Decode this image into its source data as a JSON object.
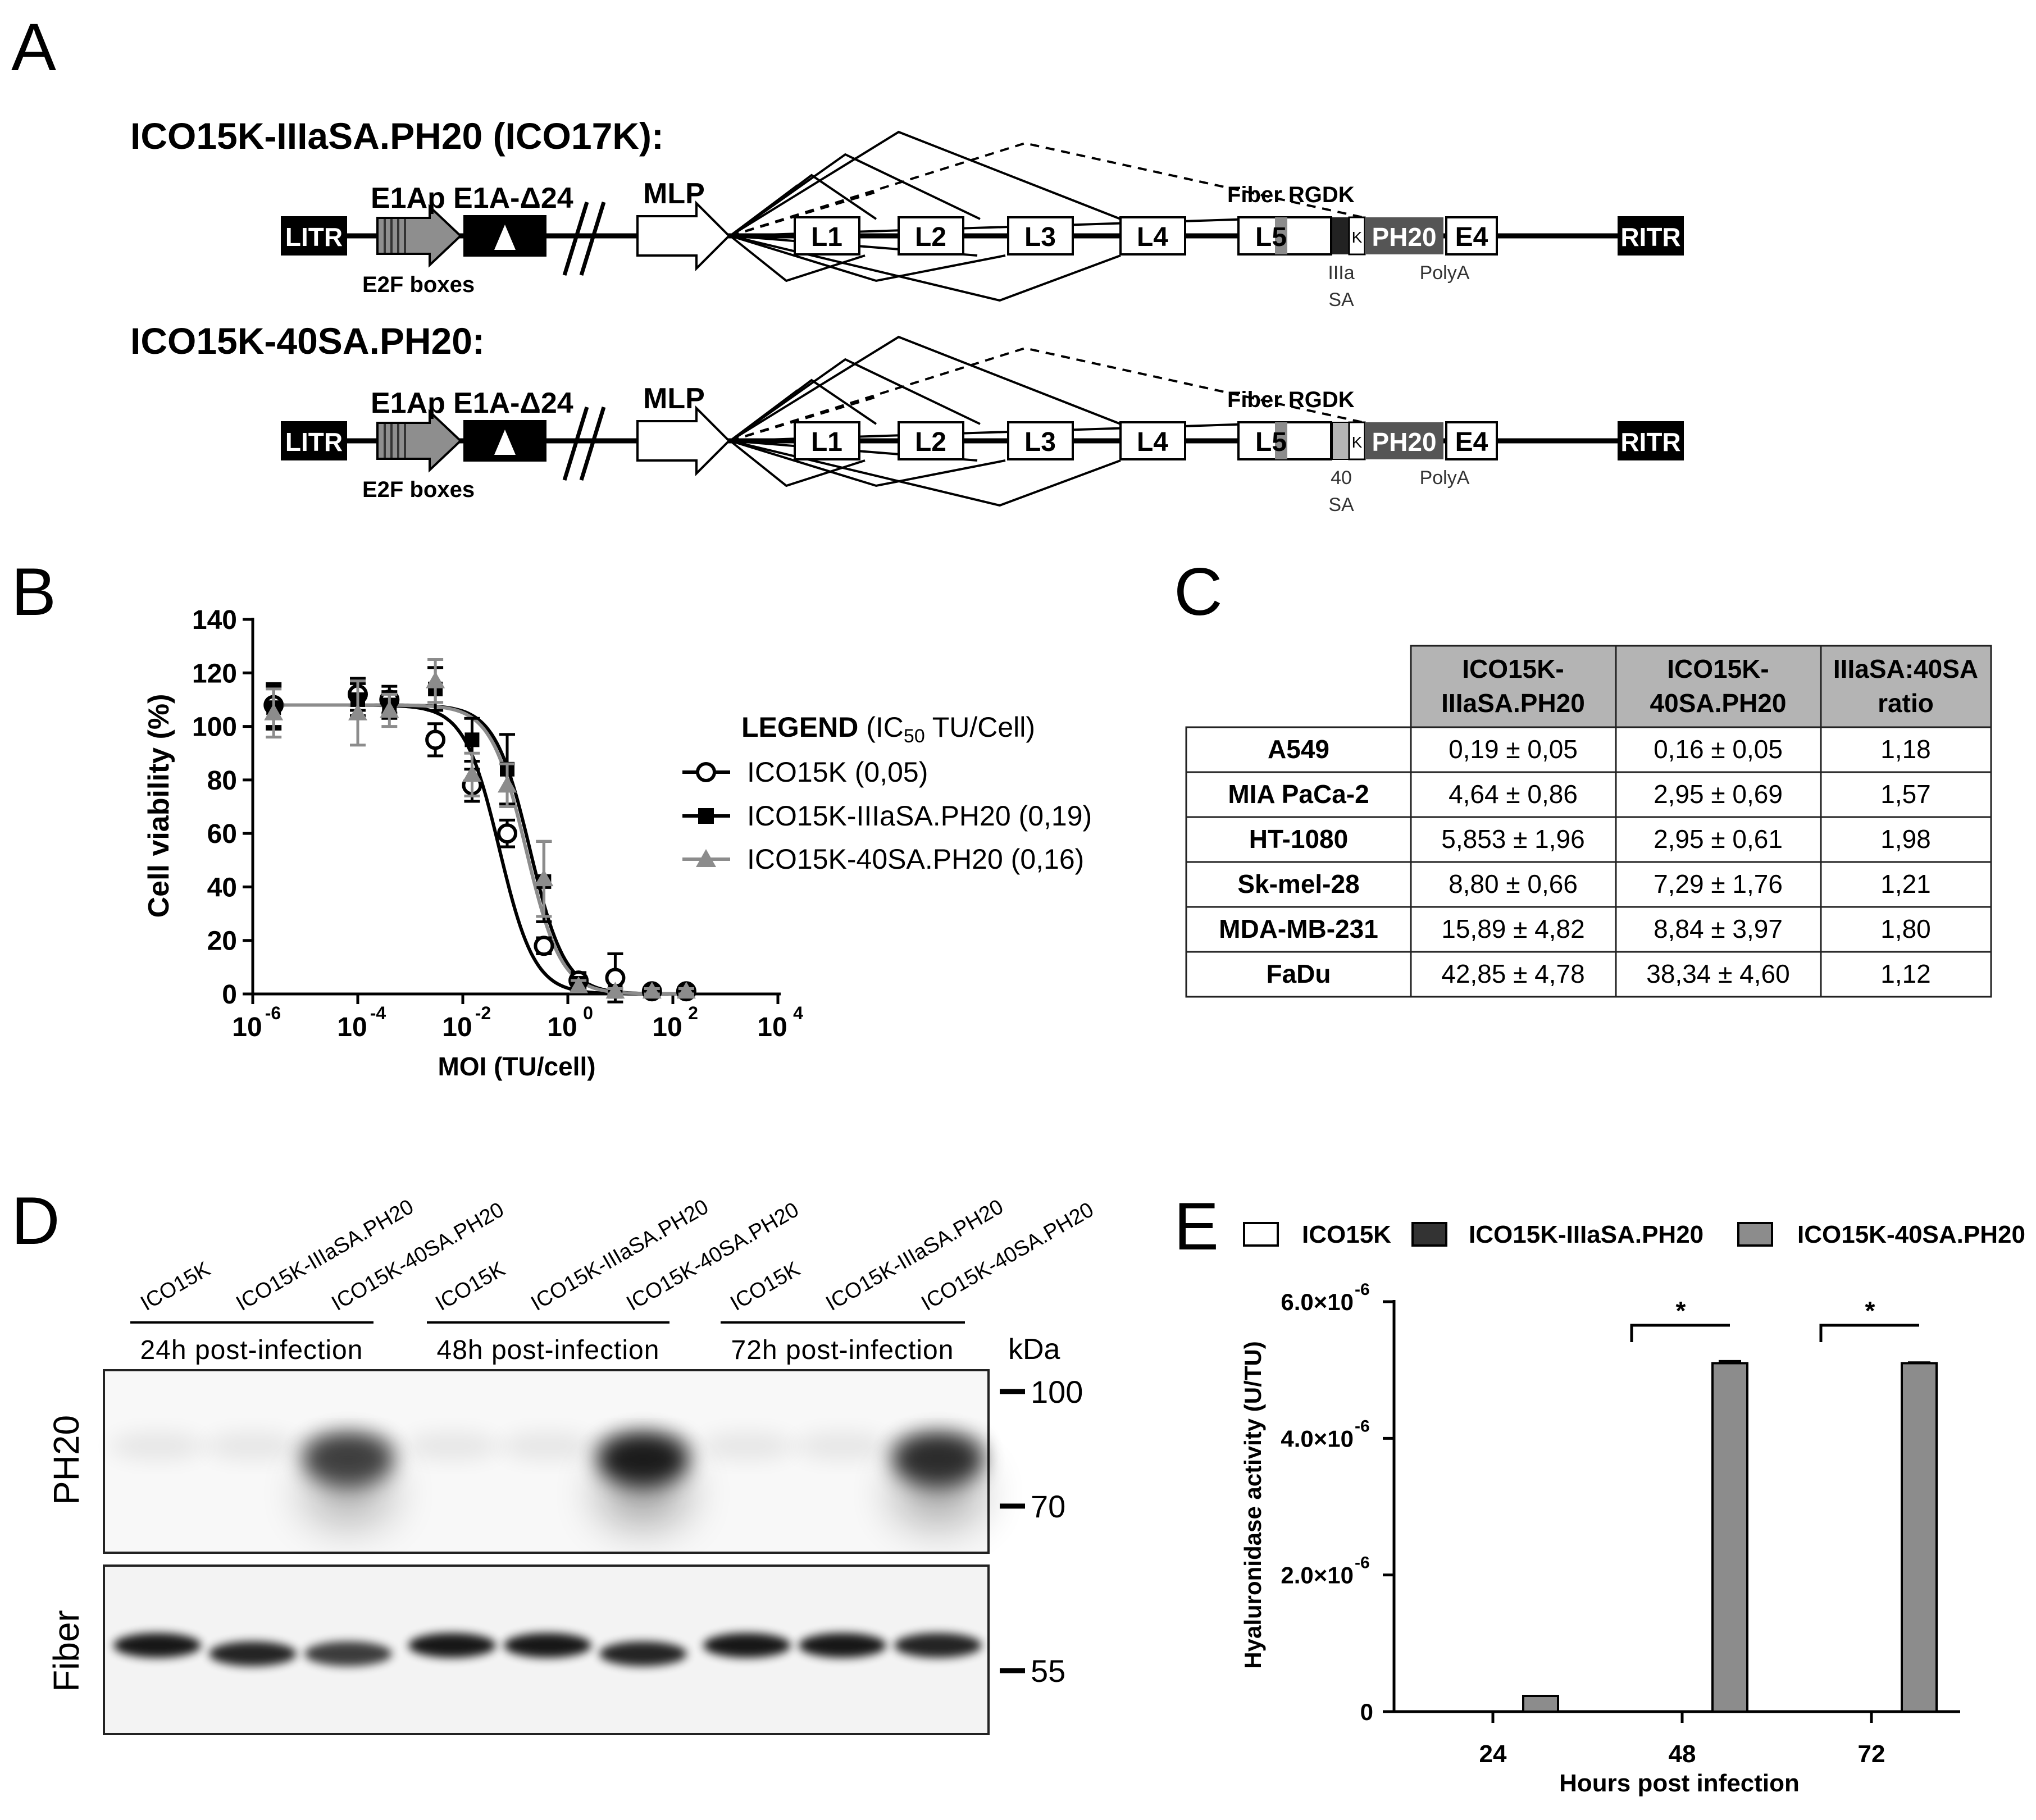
{
  "panels": {
    "A": "A",
    "B": "B",
    "C": "C",
    "D": "D",
    "E": "E"
  },
  "construct1": {
    "title": "ICO15K-IIIaSA.PH20 (ICO17K):",
    "litr": "LITR",
    "ritr": "RITR",
    "e1ap": "E1Ap",
    "e1a": "E1A-Δ24",
    "e2f": "E2F boxes",
    "mlp": "MLP",
    "genes": [
      "L1",
      "L2",
      "L3",
      "L4",
      "L5"
    ],
    "fiber": "Fiber RGDK",
    "k": "K",
    "ph20": "PH20",
    "e4": "E4",
    "sa_top": "IIIa",
    "sa_bottom": "SA",
    "polya": "PolyA"
  },
  "construct2": {
    "title": "ICO15K-40SA.PH20:",
    "litr": "LITR",
    "ritr": "RITR",
    "e1ap": "E1Ap",
    "e1a": "E1A-Δ24",
    "e2f": "E2F boxes",
    "mlp": "MLP",
    "genes": [
      "L1",
      "L2",
      "L3",
      "L4",
      "L5"
    ],
    "fiber": "Fiber RGDK",
    "k": "K",
    "ph20": "PH20",
    "e4": "E4",
    "sa_top": "40",
    "sa_bottom": "SA",
    "polya": "PolyA"
  },
  "panelB": {
    "chart_data": {
      "type": "scatter",
      "xlabel": "MOI (TU/cell)",
      "ylabel": "Cell viability (%)",
      "x_scale": "log",
      "xlim": [
        1e-06,
        10000.0
      ],
      "ylim": [
        0,
        140
      ],
      "x_tick_labels": [
        "10",
        "10",
        "10",
        "10",
        "10",
        "10"
      ],
      "x_tick_exponents": [
        "-6",
        "-4",
        "-2",
        "0",
        "2",
        "4"
      ],
      "x_tick_values": [
        1e-06,
        0.0001,
        0.01,
        1,
        100,
        10000
      ],
      "y_ticks": [
        0,
        20,
        40,
        60,
        80,
        100,
        120,
        140
      ],
      "legend_bold": "LEGEND",
      "legend_rest": " (IC",
      "legend_sub": "50",
      "legend_end": " TU/Cell)",
      "series": [
        {
          "name": "ICO15K (0,05)",
          "color": "#000000",
          "marker": "circle-open",
          "x": [
            2.5e-06,
            0.0001,
            0.0004,
            0.003,
            0.015,
            0.07,
            0.35,
            1.6,
            8,
            40,
            180
          ],
          "y": [
            108,
            112,
            110,
            95,
            78,
            60,
            18,
            5,
            6,
            1,
            1
          ],
          "err": [
            8,
            6,
            5,
            6,
            6,
            5,
            3,
            3,
            9,
            1,
            1
          ],
          "ic50": 0.05
        },
        {
          "name": "ICO15K-IIIaSA.PH20 (0,19)",
          "color": "#000000",
          "marker": "square-filled",
          "x": [
            2.5e-06,
            0.0001,
            0.0004,
            0.003,
            0.015,
            0.07,
            0.35,
            1.6,
            8,
            40,
            180
          ],
          "y": [
            107,
            110,
            108,
            114,
            95,
            84,
            42,
            4,
            1,
            1,
            1
          ],
          "err": [
            8,
            6,
            5,
            8,
            8,
            13,
            15,
            2,
            1,
            1,
            1
          ],
          "ic50": 0.19
        },
        {
          "name": "ICO15K-40SA.PH20 (0,16)",
          "color": "#8c8c8c",
          "marker": "triangle-filled",
          "x": [
            2.5e-06,
            0.0001,
            0.0004,
            0.003,
            0.015,
            0.07,
            0.35,
            1.6,
            8,
            40,
            180
          ],
          "y": [
            105,
            105,
            106,
            117,
            82,
            78,
            43,
            3,
            1,
            1,
            1
          ],
          "err": [
            9,
            12,
            6,
            8,
            8,
            8,
            14,
            2,
            1,
            1,
            1
          ],
          "ic50": 0.16
        }
      ]
    }
  },
  "panelC": {
    "chart_data": {
      "type": "table",
      "headers": [
        [
          "ICO15K-",
          "IIIaSA.PH20"
        ],
        [
          "ICO15K-",
          "40SA.PH20"
        ],
        [
          "IIIaSA:40SA",
          "ratio"
        ]
      ],
      "rows": [
        {
          "cell": "A549",
          "iiia": "0,19 ± 0,05",
          "sa40": "0,16 ± 0,05",
          "ratio": "1,18"
        },
        {
          "cell": "MIA PaCa-2",
          "iiia": "4,64 ± 0,86",
          "sa40": "2,95 ± 0,69",
          "ratio": "1,57"
        },
        {
          "cell": "HT-1080",
          "iiia": "5,853 ± 1,96",
          "sa40": "2,95 ± 0,61",
          "ratio": "1,98"
        },
        {
          "cell": "Sk-mel-28",
          "iiia": "8,80 ± 0,66",
          "sa40": "7,29 ± 1,76",
          "ratio": "1,21"
        },
        {
          "cell": "MDA-MB-231",
          "iiia": "15,89 ± 4,82",
          "sa40": "8,84 ± 3,97",
          "ratio": "1,80"
        },
        {
          "cell": "FaDu",
          "iiia": "42,85 ± 4,78",
          "sa40": "38,34 ± 4,60",
          "ratio": "1,12"
        }
      ]
    }
  },
  "panelD": {
    "lanes": [
      "ICO15K",
      "ICO15K-IIIaSA.PH20",
      "ICO15K-40SA.PH20",
      "ICO15K",
      "ICO15K-IIIaSA.PH20",
      "ICO15K-40SA.PH20",
      "ICO15K",
      "ICO15K-IIIaSA.PH20",
      "ICO15K-40SA.PH20"
    ],
    "groups": [
      "24h post-infection",
      "48h post-infection",
      "72h post-infection"
    ],
    "kda": "kDa",
    "markers": [
      "100",
      "70",
      "55"
    ],
    "blot_labels": [
      "PH20",
      "Fiber"
    ],
    "ph20_band_intensity": [
      0.05,
      0.05,
      0.8,
      0.05,
      0.05,
      1.0,
      0.05,
      0.05,
      0.9
    ],
    "fiber_band_intensity": [
      0.9,
      0.85,
      0.75,
      0.9,
      0.9,
      0.85,
      0.9,
      0.9,
      0.85
    ]
  },
  "panelE": {
    "chart_data": {
      "type": "bar",
      "categories": [
        "24",
        "48",
        "72"
      ],
      "xlabel": "Hours post infection",
      "ylabel": "Hyaluronidase activity (U/TU)",
      "ylim": [
        0,
        6e-06
      ],
      "y_tick_values": [
        0,
        2e-06,
        4e-06,
        6e-06
      ],
      "y_tick_labels": [
        {
          "base": "0",
          "exp": ""
        },
        {
          "base": "2.0×10",
          "exp": "-6"
        },
        {
          "base": "4.0×10",
          "exp": "-6"
        },
        {
          "base": "6.0×10",
          "exp": "-6"
        }
      ],
      "series": [
        {
          "name": "ICO15K",
          "color": "#ffffff",
          "values": [
            0,
            0,
            0
          ]
        },
        {
          "name": "ICO15K-IIIaSA.PH20",
          "color": "#333333",
          "values": [
            0,
            0,
            0
          ]
        },
        {
          "name": "ICO15K-40SA.PH20",
          "color": "#8c8c8c",
          "values": [
            2.3e-07,
            5.1e-06,
            5.1e-06
          ],
          "err": [
            0,
            3e-08,
            1e-08
          ]
        }
      ],
      "significance": [
        {
          "category": "48",
          "label": "*"
        },
        {
          "category": "72",
          "label": "*"
        }
      ]
    }
  }
}
